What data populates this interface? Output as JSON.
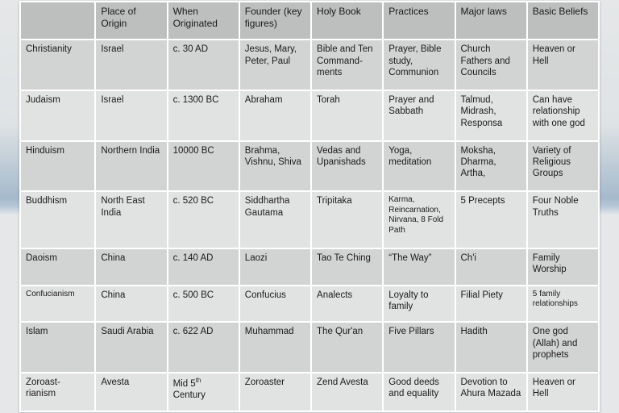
{
  "table": {
    "columns": [
      "",
      "Place of Origin",
      "When Originated",
      "Founder (key figures)",
      "Holy Book",
      "Practices",
      "Major laws",
      "Basic Beliefs"
    ],
    "header_bg": "#bcbfbe",
    "row_bg_alt": [
      "#d2d4d3",
      "#e1e3e2"
    ],
    "border_color": "#ffffff",
    "font_family": "Arial",
    "base_fontsize": 11.5,
    "rows": [
      {
        "name": "Christianity",
        "cells": [
          "Christianity",
          "Israel",
          "c. 30 AD",
          "Jesus, Mary, Peter, Paul",
          "Bible and Ten Command-ments",
          "Prayer, Bible study, Communion",
          "Church Fathers and Councils",
          "Heaven or Hell"
        ]
      },
      {
        "name": "Judaism",
        "cells": [
          "Judaism",
          "Israel",
          "c. 1300 BC",
          "Abraham",
          "Torah",
          "Prayer and Sabbath",
          "Talmud, Midrash, Responsa",
          "Can have relationship with one god"
        ]
      },
      {
        "name": "Hinduism",
        "cells": [
          "Hinduism",
          "Northern India",
          "10000 BC",
          "Brahma, Vishnu, Shiva",
          "Vedas and Upanishads",
          "Yoga, meditation",
          "Moksha, Dharma, Artha,",
          "Variety of Religious Groups"
        ]
      },
      {
        "name": "Buddhism",
        "cells": [
          "Buddhism",
          "North East India",
          "c. 520 BC",
          "Siddhartha Gautama",
          "Tripitaka",
          "Karma, Reincarnation, Nirvana, 8 Fold Path",
          "5 Precepts",
          "Four Noble Truths"
        ],
        "small_cols": [
          5
        ]
      },
      {
        "name": "Daoism",
        "cells": [
          "Daoism",
          "China",
          "c. 140 AD",
          "Laozi",
          "Tao Te Ching",
          "“The Way”",
          "Ch'i",
          "Family Worship"
        ]
      },
      {
        "name": "Confucianism",
        "cells": [
          "Confucianism",
          "China",
          "c. 500 BC",
          "Confucius",
          "Analects",
          "Loyalty to family",
          "Filial Piety",
          "5 family relationships"
        ],
        "small_cols": [
          0,
          7
        ]
      },
      {
        "name": "Islam",
        "cells": [
          "Islam",
          "Saudi Arabia",
          "c. 622 AD",
          "Muhammad",
          "The Qur'an",
          "Five Pillars",
          "Hadith",
          "One god (Allah) and prophets"
        ]
      },
      {
        "name": "Zoroastrianism",
        "cells": [
          "Zoroast-rianism",
          "Avesta",
          "Mid 5th Century",
          "Zoroaster",
          "Zend Avesta",
          "Good deeds and equality",
          "Devotion to Ahura Mazada",
          "Heaven or Hell"
        ],
        "sup_col": 2
      }
    ]
  }
}
